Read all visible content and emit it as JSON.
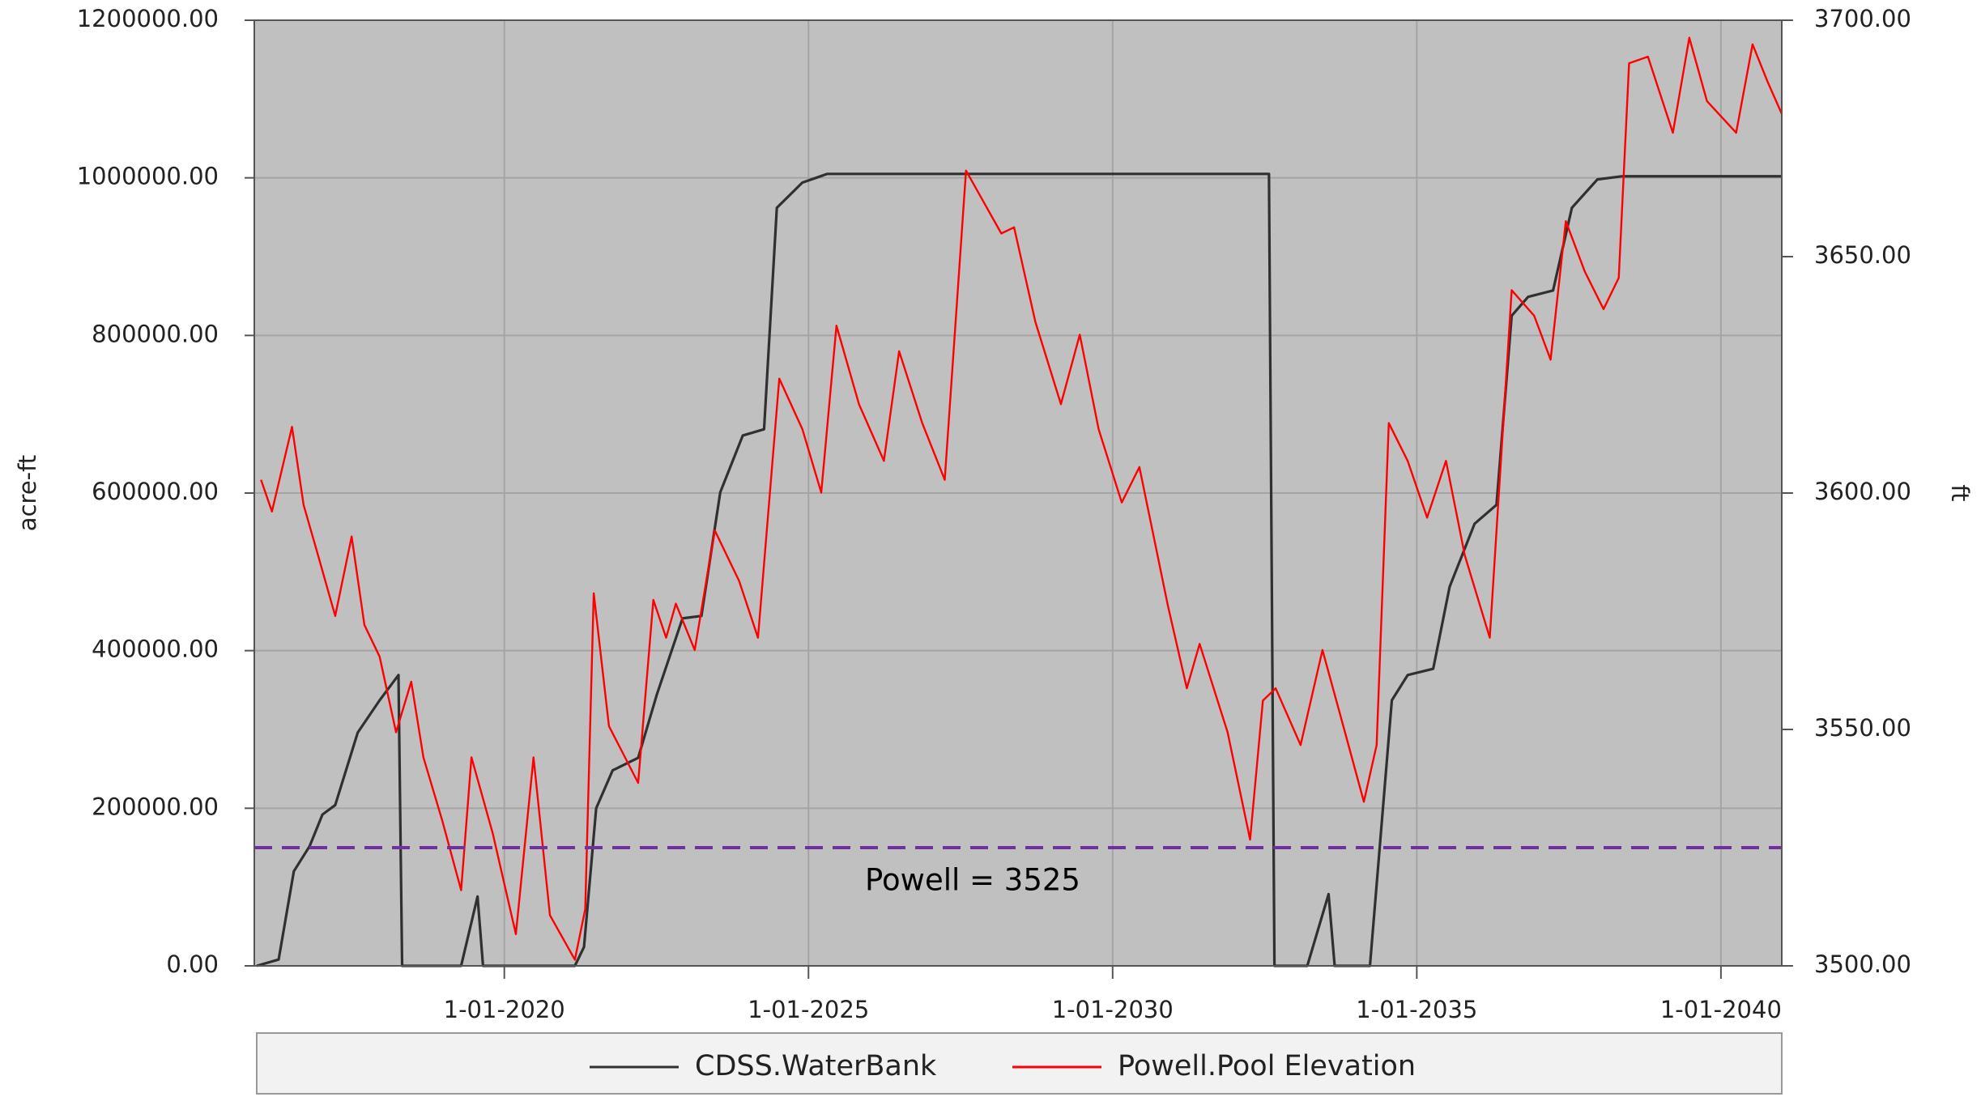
{
  "chart_data": {
    "type": "line",
    "xlim": [
      2015.89,
      2041.0
    ],
    "xticks": [
      {
        "value": 2020,
        "label": "1-01-2020"
      },
      {
        "value": 2025,
        "label": "1-01-2025"
      },
      {
        "value": 2030,
        "label": "1-01-2030"
      },
      {
        "value": 2035,
        "label": "1-01-2035"
      },
      {
        "value": 2040,
        "label": "1-01-2040"
      }
    ],
    "ylabel": "acre-ft",
    "ylim": [
      0,
      1200000
    ],
    "yticks": [
      {
        "value": 0,
        "label": "0.00"
      },
      {
        "value": 200000,
        "label": "200000.00"
      },
      {
        "value": 400000,
        "label": "400000.00"
      },
      {
        "value": 600000,
        "label": "600000.00"
      },
      {
        "value": 800000,
        "label": "800000.00"
      },
      {
        "value": 1000000,
        "label": "1000000.00"
      },
      {
        "value": 1200000,
        "label": "1200000.00"
      }
    ],
    "y2label": "ft",
    "y2lim": [
      3500,
      3700
    ],
    "y2ticks": [
      {
        "value": 3500,
        "label": "3500.00"
      },
      {
        "value": 3550,
        "label": "3550.00"
      },
      {
        "value": 3600,
        "label": "3600.00"
      },
      {
        "value": 3650,
        "label": "3650.00"
      },
      {
        "value": 3700,
        "label": "3700.00"
      }
    ],
    "grid": true,
    "legend": "bottom",
    "series": [
      {
        "name": "CDSS.WaterBank",
        "color": "#303030",
        "axis": "y",
        "x": [
          2015.93,
          2016.29,
          2016.54,
          2016.8,
          2017.01,
          2017.22,
          2017.59,
          2017.95,
          2018.26,
          2018.32,
          2019.29,
          2019.56,
          2019.65,
          2021.16,
          2021.31,
          2021.51,
          2021.78,
          2022.2,
          2022.51,
          2022.93,
          2023.24,
          2023.55,
          2023.92,
          2024.27,
          2024.48,
          2024.9,
          2025.31,
          2032.57,
          2032.66,
          2033.2,
          2033.55,
          2033.65,
          2034.23,
          2034.59,
          2034.85,
          2035.27,
          2035.54,
          2035.95,
          2036.31,
          2036.56,
          2036.83,
          2037.24,
          2037.55,
          2037.97,
          2038.38,
          2041.0
        ],
        "values": [
          0,
          8000,
          120000,
          152000,
          192000,
          204000,
          296000,
          337000,
          369000,
          0,
          0,
          88000,
          0,
          0,
          24000,
          200000,
          248000,
          264000,
          345000,
          441000,
          444000,
          601000,
          673000,
          681000,
          962000,
          994000,
          1005000,
          1005000,
          0,
          0,
          91000,
          0,
          0,
          337000,
          369000,
          377000,
          481000,
          561000,
          585000,
          825000,
          849000,
          857000,
          962000,
          998000,
          1002000,
          1002000
        ]
      },
      {
        "name": "Powell.Pool Elevation",
        "color": "#ff0000",
        "axis": "y2",
        "x": [
          2016.0,
          2016.18,
          2016.51,
          2016.7,
          2016.91,
          2017.22,
          2017.49,
          2017.7,
          2017.95,
          2018.22,
          2018.47,
          2018.67,
          2018.98,
          2019.29,
          2019.46,
          2019.81,
          2020.19,
          2020.48,
          2020.75,
          2021.16,
          2021.33,
          2021.47,
          2021.72,
          2022.2,
          2022.45,
          2022.66,
          2022.82,
          2023.13,
          2023.46,
          2023.86,
          2024.17,
          2024.52,
          2024.9,
          2025.21,
          2025.46,
          2025.83,
          2026.24,
          2026.49,
          2026.87,
          2027.24,
          2027.59,
          2028.17,
          2028.38,
          2028.73,
          2029.15,
          2029.46,
          2029.77,
          2030.15,
          2030.44,
          2030.91,
          2031.22,
          2031.43,
          2031.89,
          2032.26,
          2032.47,
          2032.68,
          2033.09,
          2033.45,
          2033.82,
          2034.13,
          2034.34,
          2034.54,
          2034.85,
          2035.17,
          2035.48,
          2035.79,
          2036.2,
          2036.56,
          2036.93,
          2037.2,
          2037.45,
          2037.76,
          2038.07,
          2038.32,
          2038.49,
          2038.8,
          2039.21,
          2039.48,
          2039.77,
          2040.25,
          2040.52,
          2040.77,
          2041.0
        ],
        "values": [
          3602.8,
          3596.1,
          3614.0,
          3597.5,
          3588.1,
          3574.0,
          3590.8,
          3572.1,
          3565.4,
          3549.4,
          3560.1,
          3544.1,
          3530.7,
          3516.0,
          3544.1,
          3528.0,
          3506.7,
          3544.1,
          3510.7,
          3501.3,
          3512.0,
          3578.8,
          3550.7,
          3538.7,
          3577.4,
          3569.4,
          3576.6,
          3566.8,
          3592.1,
          3581.4,
          3569.4,
          3624.2,
          3613.5,
          3600.1,
          3635.4,
          3618.8,
          3606.8,
          3630.0,
          3614.8,
          3602.8,
          3668.2,
          3654.9,
          3656.2,
          3636.2,
          3618.8,
          3633.5,
          3613.5,
          3598.0,
          3605.5,
          3576.1,
          3558.7,
          3568.1,
          3549.4,
          3526.7,
          3556.1,
          3558.7,
          3546.7,
          3566.8,
          3549.4,
          3534.7,
          3546.7,
          3614.8,
          3606.8,
          3594.8,
          3606.8,
          3586.8,
          3569.4,
          3642.9,
          3637.5,
          3628.2,
          3657.5,
          3646.9,
          3638.9,
          3645.5,
          3690.9,
          3692.3,
          3676.2,
          3696.3,
          3682.9,
          3676.2,
          3694.9,
          3686.9,
          3680.2
        ]
      }
    ],
    "reference_line": {
      "value": 3525,
      "axis": "y2",
      "label": "Powell = 3525",
      "color": "#7030a0"
    }
  }
}
